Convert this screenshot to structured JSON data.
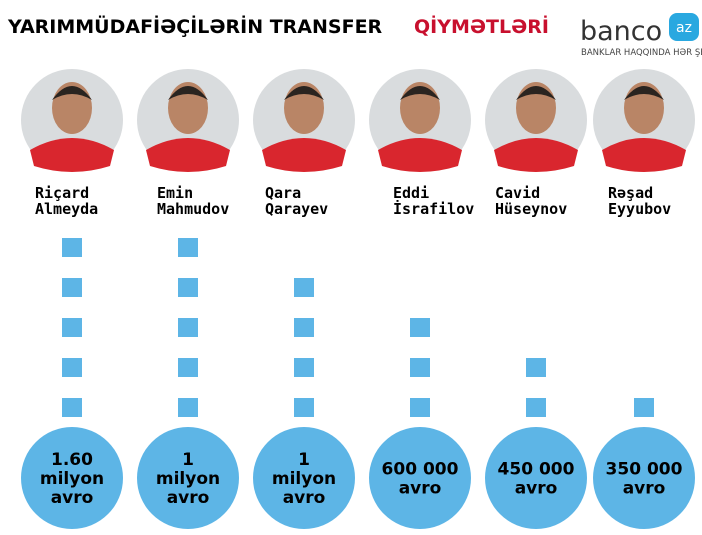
{
  "header": {
    "title_black": "YARIMMÜDAFİƏÇİLƏRİN TRANSFER",
    "title_red": "QİYMƏTLƏRİ"
  },
  "logo": {
    "name": "banco",
    "badge": "az",
    "tagline": "BANKLAR HAQQINDA HƏR ŞEY"
  },
  "players": [
    {
      "name": [
        "Riçard",
        "Almeyda"
      ],
      "price": [
        "1.60",
        "milyon",
        "avro"
      ],
      "squares": 5
    },
    {
      "name": [
        "Emin",
        "Mahmudov"
      ],
      "price": [
        "1",
        "milyon",
        "avro"
      ],
      "squares": 5
    },
    {
      "name": [
        "Qara",
        "Qarayev"
      ],
      "price": [
        "1",
        "milyon",
        "avro"
      ],
      "squares": 4
    },
    {
      "name": [
        "Eddi",
        "İsrafilov"
      ],
      "price": [
        "600 000",
        "avro"
      ],
      "squares": 3
    },
    {
      "name": [
        "Cavid",
        "Hüseynov"
      ],
      "price": [
        "450 000",
        "avro"
      ],
      "squares": 2
    },
    {
      "name": [
        "Rəşad",
        "Eyyubov"
      ],
      "price": [
        "350 000",
        "avro"
      ],
      "squares": 1
    }
  ]
}
